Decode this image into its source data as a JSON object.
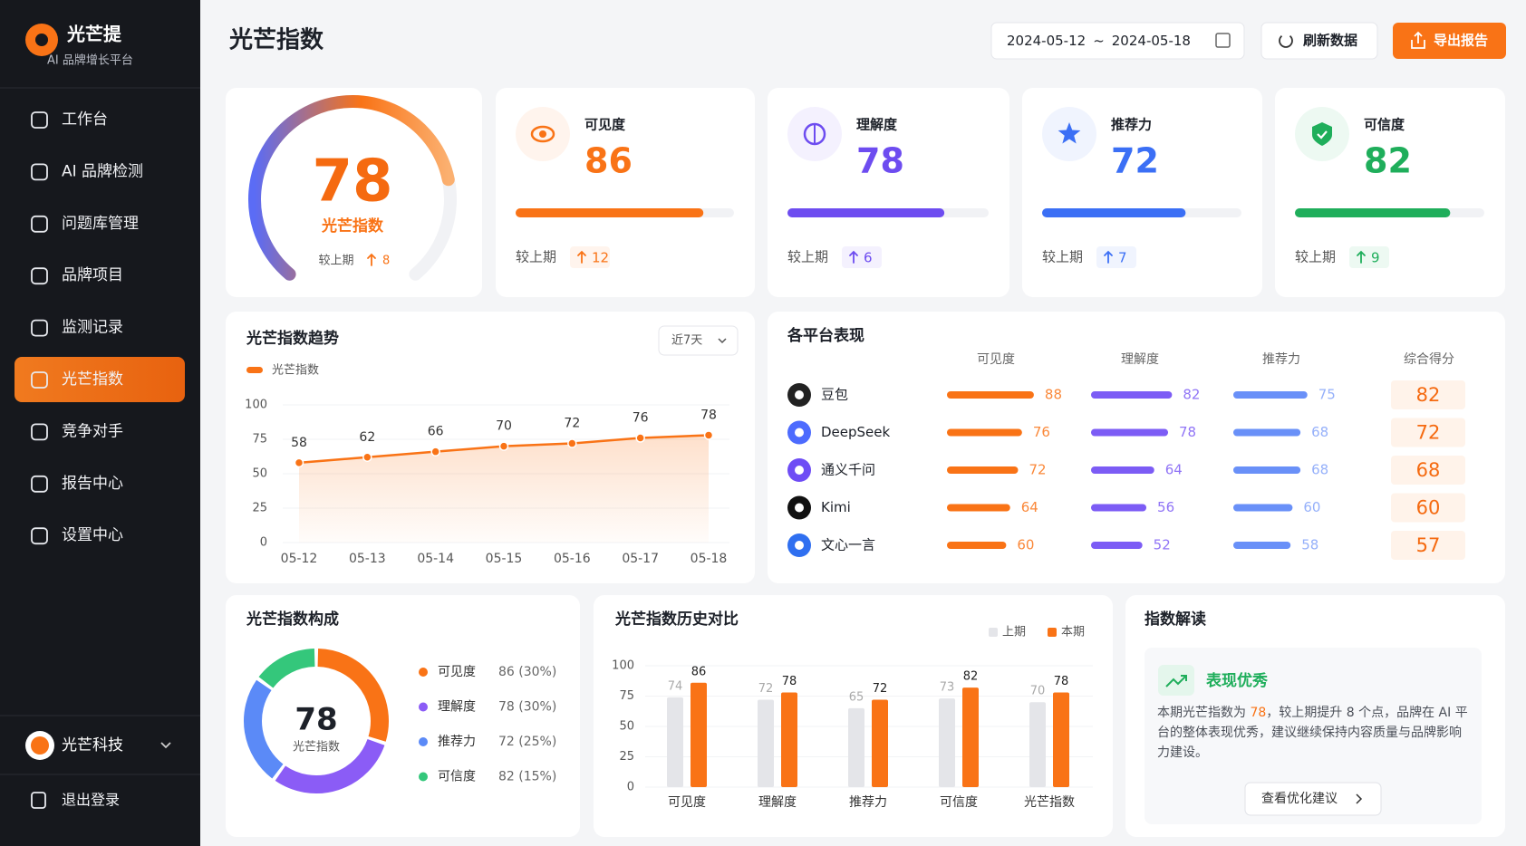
{
  "sidebar": {
    "brand": "光芒提",
    "tagline": "AI 品牌增长平台",
    "menu": [
      "工作台",
      "AI 品牌检测",
      "问题库管理",
      "品牌项目",
      "监测记录",
      "光芒指数",
      "竞争对手",
      "报告中心",
      "设置中心"
    ],
    "active": 5,
    "account": "光芒科技",
    "logout": "退出登录"
  },
  "header": {
    "title": "光芒指数",
    "date_start": "2024-05-12",
    "date_sep": "~",
    "date_end": "2024-05-18",
    "refresh": "刷新数据",
    "export": "导出报告"
  },
  "compare_label": "较上期",
  "score": {
    "value": 78,
    "label": "光芒指数",
    "delta": 8
  },
  "metrics": [
    {
      "name": "可见度",
      "value": 86,
      "delta": 12,
      "color": "#f97316"
    },
    {
      "name": "理解度",
      "value": 78,
      "delta": 6,
      "color": "#6d4cf0"
    },
    {
      "name": "推荐力",
      "value": 72,
      "delta": 7,
      "color": "#3b6ff5"
    },
    {
      "name": "可信度",
      "value": 82,
      "delta": 9,
      "color": "#1fae5b"
    }
  ],
  "trend": {
    "title": "光芒指数趋势",
    "range": "近7天",
    "series_name": "光芒指数",
    "color": "#f97316",
    "x": [
      "05-12",
      "05-13",
      "05-14",
      "05-15",
      "05-16",
      "05-17",
      "05-18"
    ],
    "values": [
      58,
      62,
      66,
      70,
      72,
      76,
      78
    ],
    "ylim": [
      0,
      100
    ],
    "yticks": [
      0,
      25,
      50,
      75,
      100
    ]
  },
  "platforms": {
    "title": "各平台表现",
    "columns": [
      "可见度",
      "理解度",
      "推荐力"
    ],
    "score_column": "综合得分",
    "colors": [
      "#f97316",
      "#7c5cf5",
      "#4f7cf7"
    ],
    "rows": [
      {
        "name": "豆包",
        "values": [
          88,
          82,
          75
        ],
        "score": 82
      },
      {
        "name": "DeepSeek",
        "values": [
          76,
          78,
          68
        ],
        "score": 72
      },
      {
        "name": "通义千问",
        "values": [
          72,
          64,
          68
        ],
        "score": 68
      },
      {
        "name": "Kimi",
        "values": [
          64,
          56,
          60
        ],
        "score": 60
      },
      {
        "name": "文心一言",
        "values": [
          60,
          52,
          58
        ],
        "score": 57
      }
    ]
  },
  "composition": {
    "title": "光芒指数构成",
    "center_value": 78,
    "center_label": "光芒指数",
    "items": [
      {
        "name": "可见度",
        "value": 86,
        "weight": 30,
        "value_label": "86 (30%)",
        "color": "#f97316"
      },
      {
        "name": "理解度",
        "value": 78,
        "weight": 30,
        "value_label": "78 (30%)",
        "color": "#8b5cf6"
      },
      {
        "name": "推荐力",
        "value": 72,
        "weight": 25,
        "value_label": "72 (25%)",
        "color": "#5b8af7"
      },
      {
        "name": "可信度",
        "value": 82,
        "weight": 15,
        "value_label": "82 (15%)",
        "color": "#34c77b"
      }
    ]
  },
  "history": {
    "title": "光芒指数历史对比",
    "categories": [
      "可见度",
      "理解度",
      "推荐力",
      "可信度",
      "光芒指数"
    ],
    "series": [
      {
        "name": "上期",
        "color": "#e4e5e9",
        "values": [
          74,
          72,
          65,
          73,
          70
        ]
      },
      {
        "name": "本期",
        "color": "#f97316",
        "values": [
          86,
          78,
          72,
          82,
          78
        ]
      }
    ],
    "ylim": [
      0,
      100
    ],
    "yticks": [
      0,
      25,
      50,
      75,
      100
    ]
  },
  "insight": {
    "title": "指数解读",
    "badge": "表现优秀",
    "text_before": "本期光芒指数为 ",
    "highlight": 78,
    "text_after": "，较上期提升 8 个点，品牌在 AI 平台的整体表现优秀，建议继续保持内容质量与品牌影响力建设。",
    "button": "查看优化建议"
  }
}
